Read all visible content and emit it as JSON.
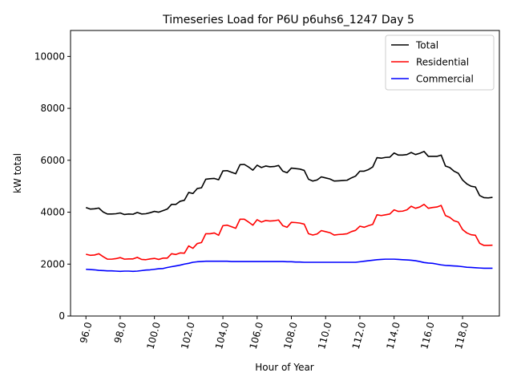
{
  "chart_data": {
    "type": "line",
    "title": "Timeseries Load for P6U p6uhs6_1247  Day 5",
    "xlabel": "Hour of Year",
    "ylabel": "kW total",
    "xlim": [
      95.1,
      120.15
    ],
    "ylim": [
      0,
      11000
    ],
    "xticks": [
      96,
      98,
      100,
      102,
      104,
      106,
      108,
      110,
      112,
      114,
      116,
      118
    ],
    "xtick_labels": [
      "96.0",
      "98.0",
      "100.0",
      "102.0",
      "104.0",
      "106.0",
      "108.0",
      "110.0",
      "112.0",
      "114.0",
      "116.0",
      "118.0"
    ],
    "yticks": [
      0,
      2000,
      4000,
      6000,
      8000,
      10000
    ],
    "ytick_labels": [
      "0",
      "2000",
      "4000",
      "6000",
      "8000",
      "10000"
    ],
    "legend_position": "top-right",
    "x_start": 96.0,
    "x_step": 0.25,
    "series": [
      {
        "name": "Total",
        "color": "#000000",
        "values": [
          4180,
          4120,
          4130,
          4160,
          4010,
          3930,
          3930,
          3940,
          3970,
          3910,
          3930,
          3920,
          3990,
          3930,
          3940,
          3980,
          4030,
          4000,
          4060,
          4120,
          4300,
          4300,
          4420,
          4460,
          4760,
          4720,
          4910,
          4940,
          5270,
          5290,
          5300,
          5250,
          5590,
          5600,
          5540,
          5480,
          5830,
          5840,
          5740,
          5620,
          5810,
          5720,
          5780,
          5750,
          5760,
          5800,
          5580,
          5520,
          5700,
          5680,
          5660,
          5610,
          5270,
          5200,
          5240,
          5360,
          5320,
          5280,
          5200,
          5210,
          5220,
          5230,
          5320,
          5390,
          5580,
          5580,
          5640,
          5740,
          6100,
          6080,
          6110,
          6120,
          6280,
          6200,
          6200,
          6220,
          6300,
          6220,
          6270,
          6340,
          6150,
          6150,
          6150,
          6200,
          5780,
          5720,
          5580,
          5500,
          5240,
          5090,
          5000,
          4970,
          4640,
          4560,
          4550,
          4570
        ]
      },
      {
        "name": "Residential",
        "color": "#ff0000",
        "values": [
          2380,
          2340,
          2350,
          2400,
          2290,
          2190,
          2190,
          2210,
          2250,
          2190,
          2200,
          2200,
          2260,
          2180,
          2170,
          2200,
          2220,
          2180,
          2230,
          2230,
          2400,
          2370,
          2430,
          2420,
          2700,
          2610,
          2790,
          2830,
          3170,
          3170,
          3200,
          3110,
          3480,
          3500,
          3440,
          3380,
          3730,
          3730,
          3620,
          3500,
          3710,
          3620,
          3680,
          3660,
          3670,
          3700,
          3480,
          3420,
          3610,
          3600,
          3580,
          3540,
          3170,
          3120,
          3160,
          3290,
          3250,
          3210,
          3120,
          3140,
          3150,
          3170,
          3250,
          3300,
          3460,
          3420,
          3480,
          3530,
          3900,
          3870,
          3900,
          3930,
          4090,
          4030,
          4040,
          4090,
          4230,
          4150,
          4200,
          4300,
          4150,
          4180,
          4200,
          4260,
          3870,
          3800,
          3670,
          3620,
          3330,
          3200,
          3130,
          3110,
          2800,
          2720,
          2720,
          2730
        ]
      },
      {
        "name": "Commercial",
        "color": "#0000ff",
        "values": [
          1800,
          1790,
          1780,
          1760,
          1750,
          1740,
          1740,
          1730,
          1720,
          1730,
          1730,
          1720,
          1730,
          1750,
          1770,
          1780,
          1800,
          1820,
          1830,
          1870,
          1900,
          1930,
          1960,
          2000,
          2030,
          2070,
          2090,
          2100,
          2110,
          2110,
          2110,
          2110,
          2110,
          2110,
          2100,
          2100,
          2100,
          2100,
          2100,
          2100,
          2100,
          2100,
          2100,
          2100,
          2100,
          2100,
          2100,
          2090,
          2090,
          2080,
          2080,
          2070,
          2070,
          2070,
          2070,
          2070,
          2070,
          2070,
          2070,
          2070,
          2070,
          2070,
          2070,
          2070,
          2090,
          2110,
          2130,
          2150,
          2170,
          2180,
          2190,
          2190,
          2190,
          2180,
          2170,
          2160,
          2150,
          2130,
          2100,
          2060,
          2040,
          2030,
          2000,
          1970,
          1950,
          1940,
          1930,
          1920,
          1900,
          1880,
          1870,
          1860,
          1850,
          1840,
          1840,
          1840
        ]
      }
    ]
  }
}
